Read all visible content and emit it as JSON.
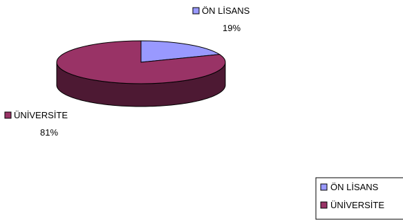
{
  "chart_data": {
    "type": "pie",
    "title": "",
    "slices": [
      {
        "label": "ÖN LİSANS",
        "value": 19,
        "value_label": "19%",
        "color": "#9999ff",
        "side_color": "#4d4d80"
      },
      {
        "label": "ÜNİVERSİTE",
        "value": 81,
        "value_label": "81%",
        "color": "#993366",
        "side_color": "#4d1933"
      }
    ],
    "legend": {
      "position": "bottom-right",
      "entries": [
        "ÖN LİSANS",
        "ÜNİVERSİTE"
      ]
    },
    "three_d": true
  }
}
